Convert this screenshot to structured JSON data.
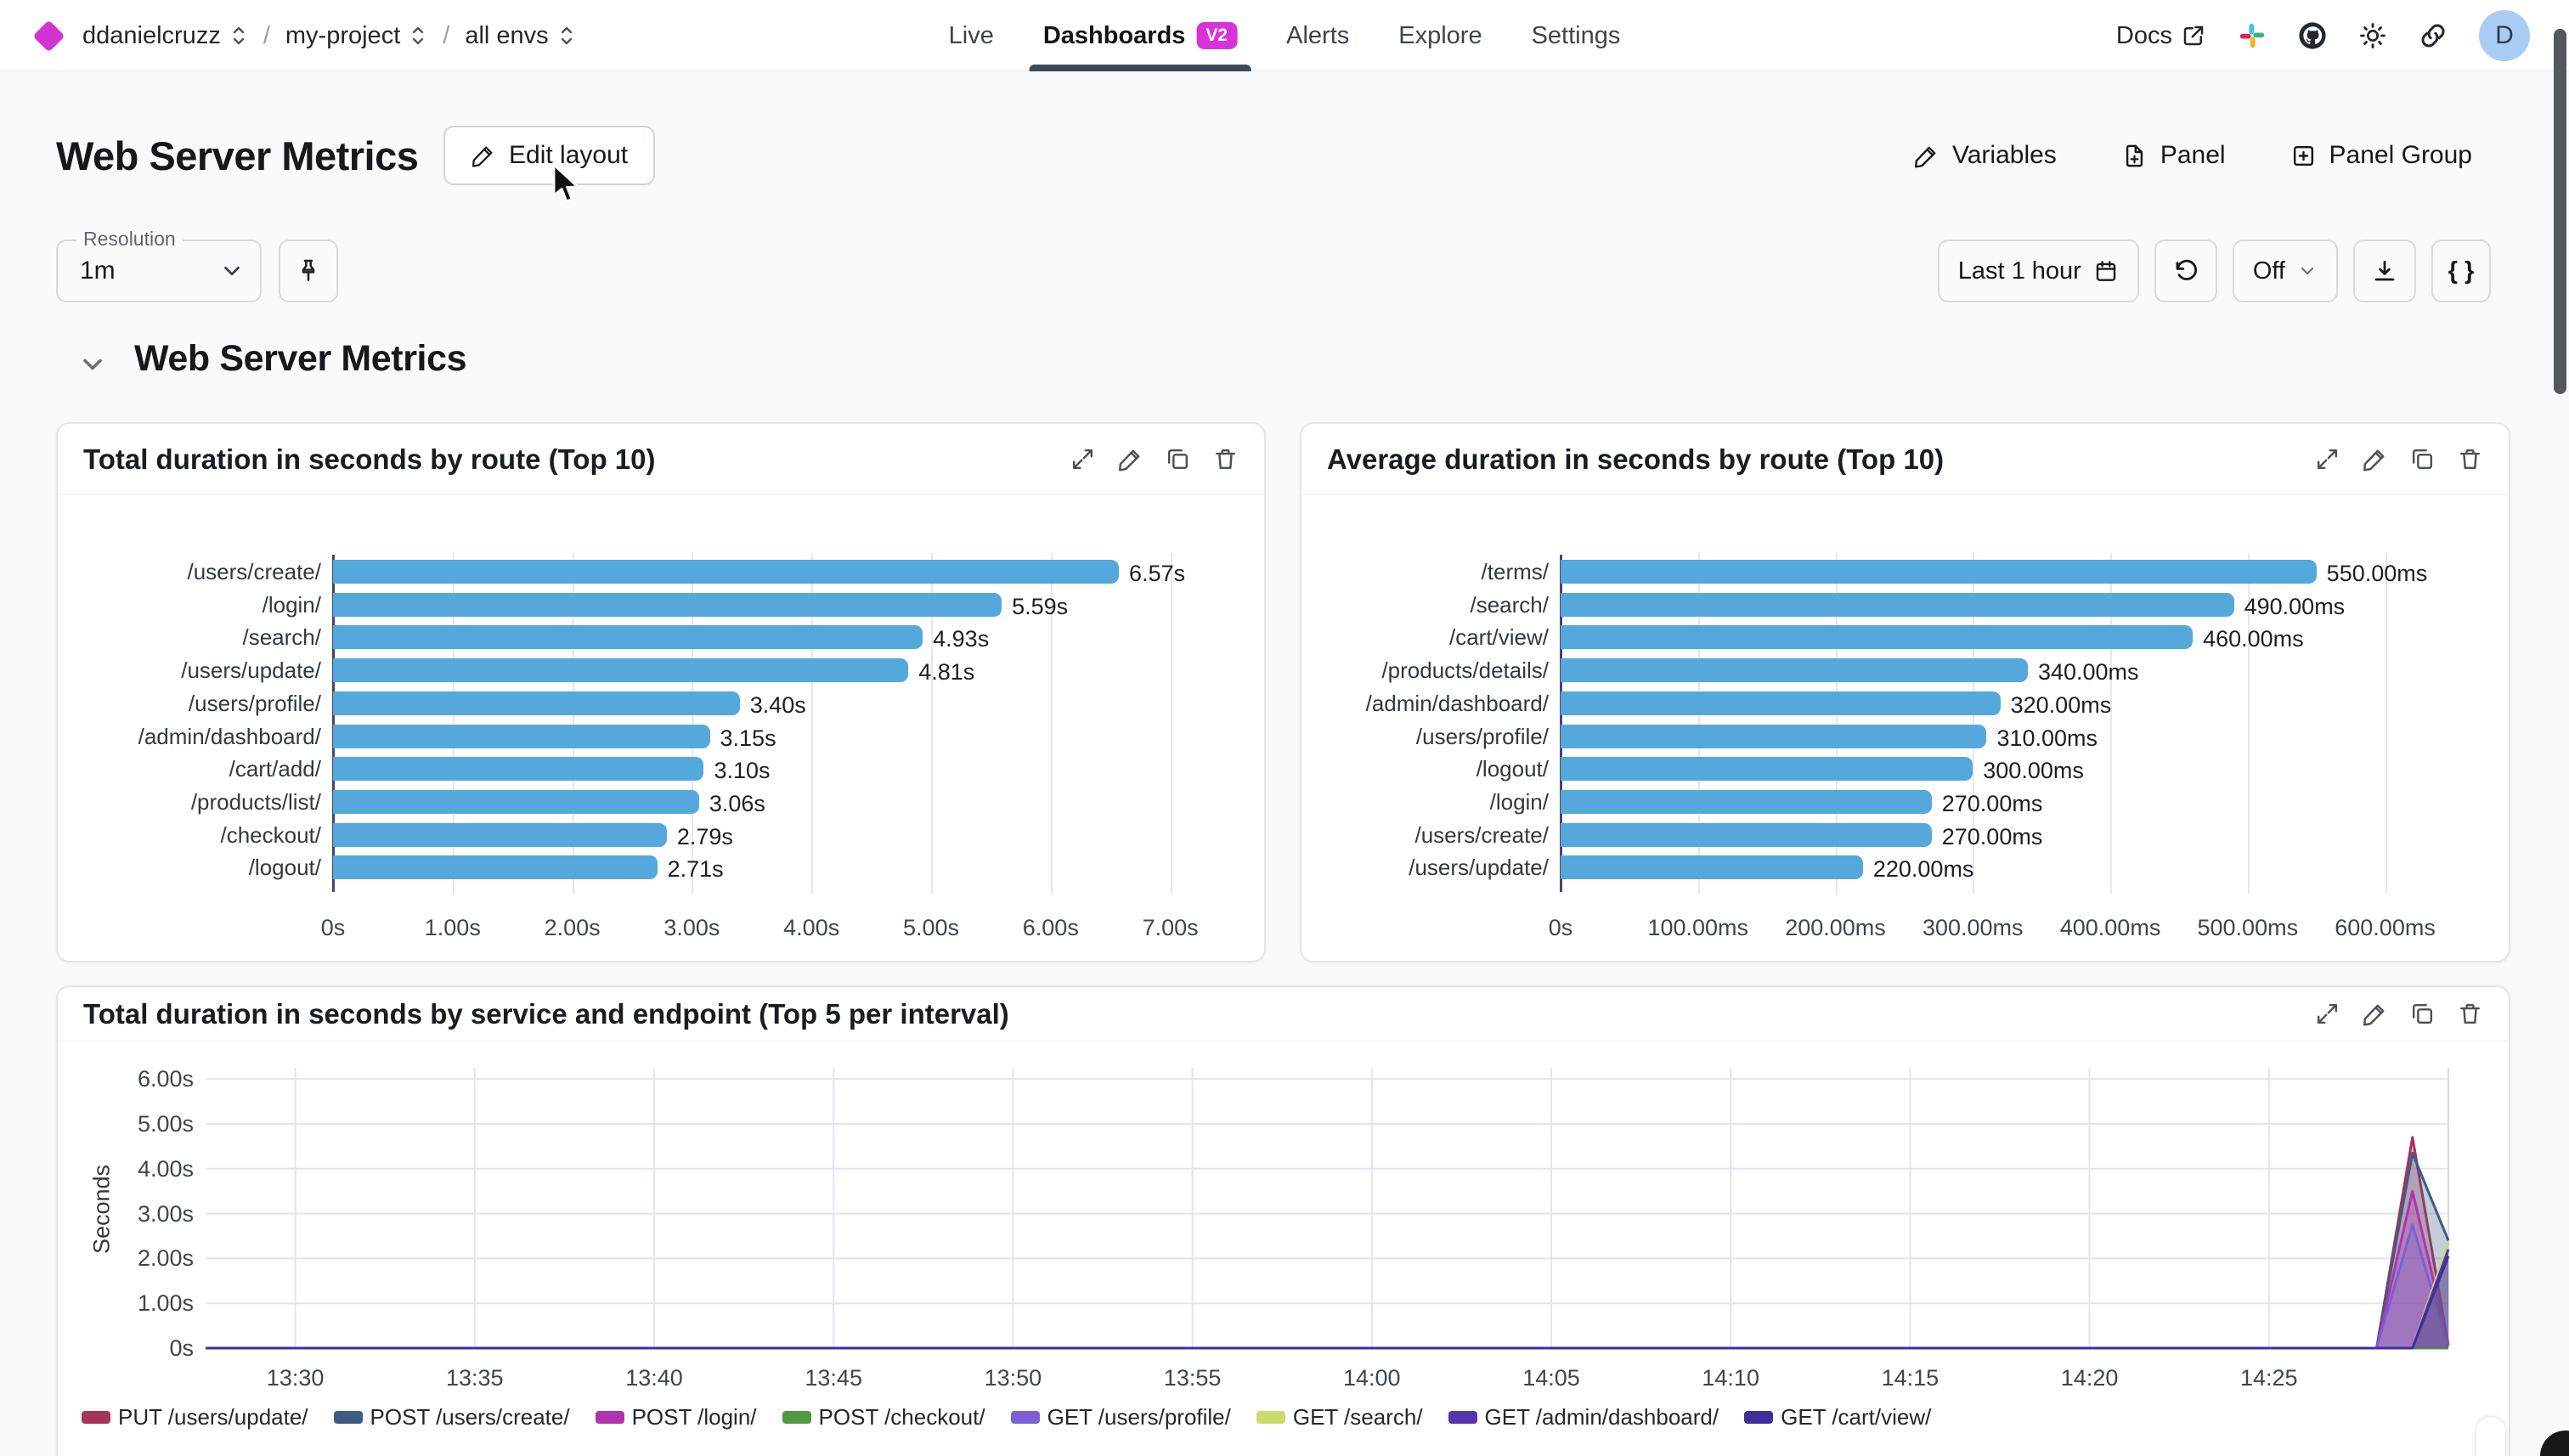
{
  "topbar": {
    "breadcrumb": [
      {
        "label": "ddanielcruzz"
      },
      {
        "label": "my-project"
      },
      {
        "label": "all envs"
      }
    ],
    "nav": [
      {
        "label": "Live"
      },
      {
        "label": "Dashboards",
        "badge": "V2",
        "active": true
      },
      {
        "label": "Alerts"
      },
      {
        "label": "Explore"
      },
      {
        "label": "Settings"
      }
    ],
    "docs_label": "Docs",
    "avatar_text": "D"
  },
  "header": {
    "title": "Web Server Metrics",
    "edit_layout_label": "Edit layout",
    "actions": [
      {
        "label": "Variables"
      },
      {
        "label": "Panel"
      },
      {
        "label": "Panel Group"
      }
    ]
  },
  "controls": {
    "resolution_label": "Resolution",
    "resolution_value": "1m",
    "time_range_value": "Last 1 hour",
    "refresh_value": "Off",
    "braces_label": "{ }"
  },
  "section": {
    "title": "Web Server Metrics"
  },
  "icons": {
    "diamond-logo": "magenta rotated square",
    "sort-icon": "up/down chevrons",
    "external-link-icon": "box with arrow",
    "slack-icon": "slack pinwheel",
    "github-icon": "github mark",
    "theme-icon": "sun",
    "share-link-icon": "chain link",
    "pencil-icon": "pencil",
    "panel-add-icon": "file with plus",
    "panel-group-add-icon": "square with plus",
    "pin-icon": "pushpin",
    "calendar-icon": "calendar",
    "refresh-icon": "counterclockwise arrow",
    "download-icon": "arrow into tray",
    "expand-icon": "diagonal arrows",
    "copy-icon": "two squares",
    "trash-icon": "trash can",
    "chevron-down-icon": "v"
  },
  "colors": {
    "bar_blue": "#54a8db",
    "axis_dark": "#46466b",
    "badge_magenta": "#d833d8",
    "active_tab_underline": "#3d4a59",
    "avatar_bg": "#a9cdf2"
  },
  "chart_data": [
    {
      "type": "bar",
      "orientation": "horizontal",
      "title": "Total duration in seconds by route (Top 10)",
      "categories": [
        "/users/create/",
        "/login/",
        "/search/",
        "/users/update/",
        "/users/profile/",
        "/admin/dashboard/",
        "/cart/add/",
        "/products/list/",
        "/checkout/",
        "/logout/"
      ],
      "values": [
        6.57,
        5.59,
        4.93,
        4.81,
        3.4,
        3.15,
        3.1,
        3.06,
        2.79,
        2.71
      ],
      "value_labels": [
        "6.57s",
        "5.59s",
        "4.93s",
        "4.81s",
        "3.40s",
        "3.15s",
        "3.10s",
        "3.06s",
        "2.79s",
        "2.71s"
      ],
      "x_ticks": [
        {
          "value": 0,
          "label": "0s"
        },
        {
          "value": 1,
          "label": "1.00s"
        },
        {
          "value": 2,
          "label": "2.00s"
        },
        {
          "value": 3,
          "label": "3.00s"
        },
        {
          "value": 4,
          "label": "4.00s"
        },
        {
          "value": 5,
          "label": "5.00s"
        },
        {
          "value": 6,
          "label": "6.00s"
        },
        {
          "value": 7,
          "label": "7.00s"
        }
      ],
      "xlim": [
        0,
        7.5
      ],
      "bar_color": "#54a8db"
    },
    {
      "type": "bar",
      "orientation": "horizontal",
      "title": "Average duration in seconds by route (Top 10)",
      "categories": [
        "/terms/",
        "/search/",
        "/cart/view/",
        "/products/details/",
        "/admin/dashboard/",
        "/users/profile/",
        "/logout/",
        "/login/",
        "/users/create/",
        "/users/update/"
      ],
      "values": [
        550,
        490,
        460,
        340,
        320,
        310,
        300,
        270,
        270,
        220
      ],
      "value_labels": [
        "550.00ms",
        "490.00ms",
        "460.00ms",
        "340.00ms",
        "320.00ms",
        "310.00ms",
        "300.00ms",
        "270.00ms",
        "270.00ms",
        "220.00ms"
      ],
      "x_ticks": [
        {
          "value": 0,
          "label": "0s"
        },
        {
          "value": 100,
          "label": "100.00ms"
        },
        {
          "value": 200,
          "label": "200.00ms"
        },
        {
          "value": 300,
          "label": "300.00ms"
        },
        {
          "value": 400,
          "label": "400.00ms"
        },
        {
          "value": 500,
          "label": "500.00ms"
        },
        {
          "value": 600,
          "label": "600.00ms"
        }
      ],
      "xlim": [
        0,
        625
      ],
      "bar_color": "#54a8db"
    },
    {
      "type": "area",
      "title": "Total duration in seconds by service and endpoint (Top 5 per interval)",
      "ylabel": "Seconds",
      "ylim": [
        0,
        6.25
      ],
      "y_ticks": [
        {
          "value": 0,
          "label": "0s"
        },
        {
          "value": 1,
          "label": "1.00s"
        },
        {
          "value": 2,
          "label": "2.00s"
        },
        {
          "value": 3,
          "label": "3.00s"
        },
        {
          "value": 4,
          "label": "4.00s"
        },
        {
          "value": 5,
          "label": "5.00s"
        },
        {
          "value": 6,
          "label": "6.00s"
        }
      ],
      "x_ticks": [
        {
          "minute": 0,
          "label": "13:30"
        },
        {
          "minute": 5,
          "label": "13:35"
        },
        {
          "minute": 10,
          "label": "13:40"
        },
        {
          "minute": 15,
          "label": "13:45"
        },
        {
          "minute": 20,
          "label": "13:50"
        },
        {
          "minute": 25,
          "label": "13:55"
        },
        {
          "minute": 30,
          "label": "14:00"
        },
        {
          "minute": 35,
          "label": "14:05"
        },
        {
          "minute": 40,
          "label": "14:10"
        },
        {
          "minute": 45,
          "label": "14:15"
        },
        {
          "minute": 50,
          "label": "14:20"
        },
        {
          "minute": 55,
          "label": "14:25"
        }
      ],
      "x_domain_minutes": [
        -2.5,
        60
      ],
      "series": [
        {
          "name": "PUT /users/update/",
          "color": "#a83358",
          "points": [
            [
              -2.5,
              0
            ],
            [
              58,
              0
            ],
            [
              59,
              4.7
            ],
            [
              60,
              0.05
            ]
          ]
        },
        {
          "name": "POST /users/create/",
          "color": "#3d5c85",
          "points": [
            [
              -2.5,
              0
            ],
            [
              58,
              0
            ],
            [
              59,
              4.35
            ],
            [
              60,
              2.4
            ]
          ]
        },
        {
          "name": "POST /login/",
          "color": "#ae35ae",
          "points": [
            [
              -2.5,
              0
            ],
            [
              58,
              0
            ],
            [
              59,
              3.5
            ],
            [
              60,
              0.1
            ]
          ]
        },
        {
          "name": "POST /checkout/",
          "color": "#4f9a3f",
          "points": [
            [
              -2.5,
              0
            ],
            [
              60,
              0
            ]
          ]
        },
        {
          "name": "GET /users/profile/",
          "color": "#7a5fd6",
          "points": [
            [
              -2.5,
              0
            ],
            [
              58,
              0
            ],
            [
              59,
              2.75
            ],
            [
              60,
              0.05
            ]
          ]
        },
        {
          "name": "GET /search/",
          "color": "#ccd96b",
          "points": [
            [
              -2.5,
              0
            ],
            [
              59,
              0
            ],
            [
              60,
              2.35
            ]
          ]
        },
        {
          "name": "GET /admin/dashboard/",
          "color": "#5634ad",
          "points": [
            [
              -2.5,
              0
            ],
            [
              59,
              0
            ],
            [
              60,
              2.2
            ]
          ]
        },
        {
          "name": "GET /cart/view/",
          "color": "#3f2f9a",
          "points": [
            [
              -2.5,
              0
            ],
            [
              59,
              0
            ],
            [
              60,
              2.05
            ]
          ]
        }
      ]
    }
  ]
}
